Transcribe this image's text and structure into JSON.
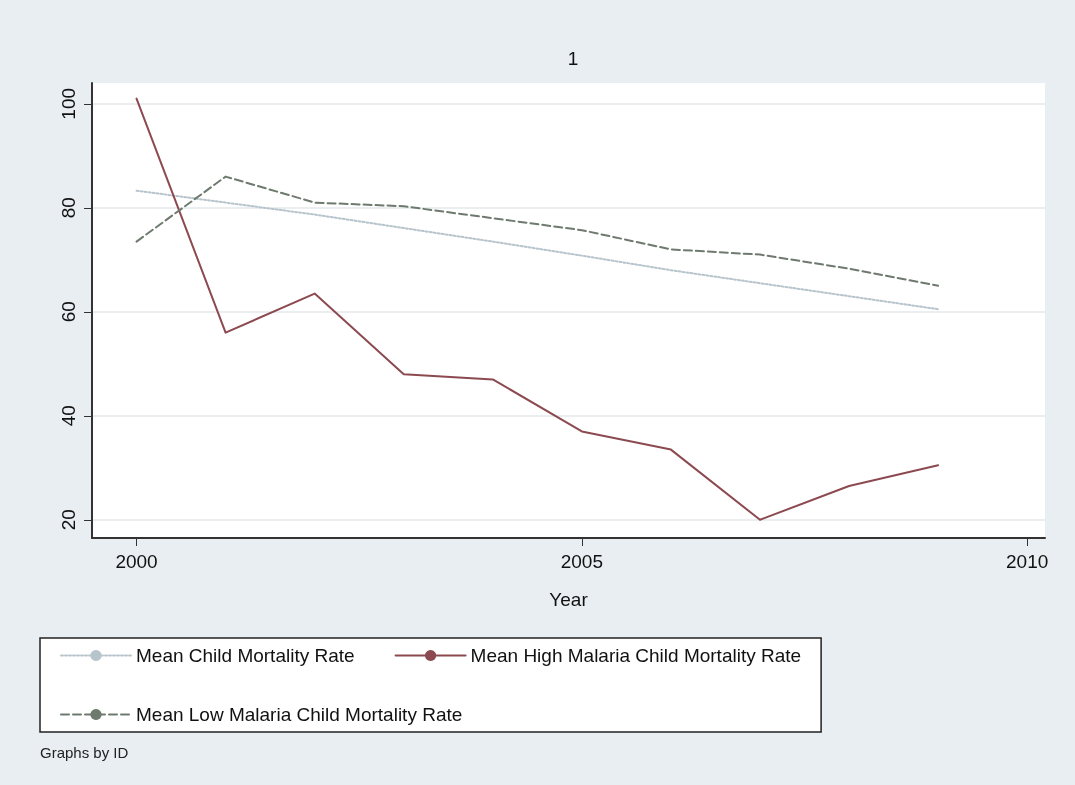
{
  "chart_data": {
    "type": "line",
    "title": "1",
    "xlabel": "Year",
    "x": [
      2000,
      2001,
      2002,
      2003,
      2004,
      2005,
      2006,
      2007,
      2008,
      2009
    ],
    "series": [
      {
        "name": "Mean Child Mortality Rate",
        "color": "#b8c4cc",
        "line_style": "dotted",
        "values": [
          83.3,
          81,
          78.7,
          76.1,
          73.5,
          70.8,
          68,
          65.5,
          63,
          60.5
        ]
      },
      {
        "name": "Mean High Malaria Child Mortality Rate",
        "color": "#8c4a50",
        "line_style": "solid",
        "values": [
          101,
          56,
          63.5,
          48,
          47,
          37,
          33.5,
          20,
          26.5,
          30.5
        ]
      },
      {
        "name": "Mean Low Malaria Child Mortality Rate",
        "color": "#6e7a6e",
        "line_style": "dashed",
        "values": [
          73.5,
          86,
          81,
          80.3,
          78,
          75.7,
          72,
          71,
          68.3,
          65
        ]
      }
    ],
    "xlim": [
      1999.5,
      2010.2
    ],
    "xticks": [
      2000,
      2005,
      2010
    ],
    "ylim": [
      16.5,
      104
    ],
    "yticks": [
      20,
      40,
      60,
      80,
      100
    ],
    "grid": "y",
    "legend": "bottom",
    "marker": "none",
    "annotations": [
      "Graphs by ID"
    ]
  }
}
